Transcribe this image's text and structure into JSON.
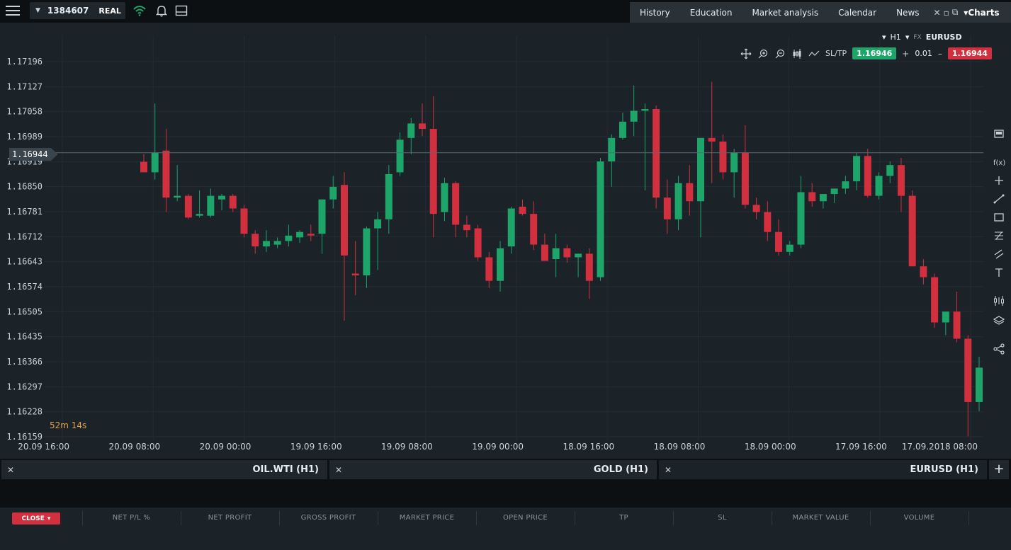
{
  "topbar": {
    "account_id": "1384607",
    "account_type": "REAL",
    "tabs": [
      "History",
      "Education",
      "Market analysis",
      "Calendar",
      "News"
    ],
    "charts_label": "Charts"
  },
  "chart": {
    "symbol": "EURUSD",
    "symbol_kind": "FX",
    "timeframe": "H1",
    "sell_price": "1.16944",
    "buy_price": "1.16946",
    "lot_size": "0.01",
    "lot_minus": "–",
    "lot_plus": "+",
    "sltp_label": "SL/TP",
    "countdown": "52m 14s",
    "current_price": "1.16944",
    "colors": {
      "up": "#1da56a",
      "down": "#d3303f",
      "background": "#1b2228"
    }
  },
  "chart_data": {
    "type": "candlestick",
    "y_ticks": [
      "1.17196",
      "1.17127",
      "1.17058",
      "1.16989",
      "1.16919",
      "1.16850",
      "1.16781",
      "1.16712",
      "1.16643",
      "1.16574",
      "1.16505",
      "1.16435",
      "1.16366",
      "1.16297",
      "1.16228",
      "1.16159"
    ],
    "x_ticks": [
      "17.09.2018 08:00",
      "17.09 16:00",
      "18.09 00:00",
      "18.09 08:00",
      "18.09 16:00",
      "19.09 00:00",
      "19.09 08:00",
      "19.09 16:00",
      "20.09 00:00",
      "20.09 08:00",
      "20.09 16:00"
    ],
    "ylim": [
      1.16159,
      1.17196
    ],
    "current_price": 1.16944,
    "candles": [
      {
        "o": 1.16919,
        "h": 1.1694,
        "l": 1.16895,
        "c": 1.1689
      },
      {
        "o": 1.1689,
        "h": 1.1708,
        "l": 1.1687,
        "c": 1.16945
      },
      {
        "o": 1.1695,
        "h": 1.1701,
        "l": 1.1678,
        "c": 1.1682
      },
      {
        "o": 1.1682,
        "h": 1.1691,
        "l": 1.1681,
        "c": 1.16825
      },
      {
        "o": 1.16825,
        "h": 1.1683,
        "l": 1.1676,
        "c": 1.16765
      },
      {
        "o": 1.1677,
        "h": 1.1684,
        "l": 1.16765,
        "c": 1.16775
      },
      {
        "o": 1.1677,
        "h": 1.16845,
        "l": 1.16765,
        "c": 1.16825
      },
      {
        "o": 1.16815,
        "h": 1.1683,
        "l": 1.16785,
        "c": 1.16825
      },
      {
        "o": 1.16825,
        "h": 1.1683,
        "l": 1.1678,
        "c": 1.1679
      },
      {
        "o": 1.1679,
        "h": 1.168,
        "l": 1.1671,
        "c": 1.1672
      },
      {
        "o": 1.1672,
        "h": 1.1673,
        "l": 1.16665,
        "c": 1.16685
      },
      {
        "o": 1.16685,
        "h": 1.1673,
        "l": 1.1667,
        "c": 1.167
      },
      {
        "o": 1.1669,
        "h": 1.1671,
        "l": 1.1668,
        "c": 1.167
      },
      {
        "o": 1.167,
        "h": 1.16745,
        "l": 1.16685,
        "c": 1.16715
      },
      {
        "o": 1.1671,
        "h": 1.1673,
        "l": 1.16695,
        "c": 1.16725
      },
      {
        "o": 1.1672,
        "h": 1.16745,
        "l": 1.167,
        "c": 1.16715
      },
      {
        "o": 1.1672,
        "h": 1.16815,
        "l": 1.16665,
        "c": 1.16815
      },
      {
        "o": 1.16815,
        "h": 1.1688,
        "l": 1.1679,
        "c": 1.1685
      },
      {
        "o": 1.16855,
        "h": 1.1689,
        "l": 1.1648,
        "c": 1.1666
      },
      {
        "o": 1.1661,
        "h": 1.167,
        "l": 1.1655,
        "c": 1.16605
      },
      {
        "o": 1.16605,
        "h": 1.1674,
        "l": 1.1657,
        "c": 1.16735
      },
      {
        "o": 1.16735,
        "h": 1.1678,
        "l": 1.1662,
        "c": 1.1676
      },
      {
        "o": 1.1676,
        "h": 1.1691,
        "l": 1.1672,
        "c": 1.16885
      },
      {
        "o": 1.1689,
        "h": 1.17,
        "l": 1.1688,
        "c": 1.1698
      },
      {
        "o": 1.16985,
        "h": 1.1704,
        "l": 1.1694,
        "c": 1.17025
      },
      {
        "o": 1.17025,
        "h": 1.1708,
        "l": 1.1699,
        "c": 1.1701
      },
      {
        "o": 1.1701,
        "h": 1.171,
        "l": 1.1671,
        "c": 1.16775
      },
      {
        "o": 1.1678,
        "h": 1.16875,
        "l": 1.16755,
        "c": 1.1686
      },
      {
        "o": 1.1686,
        "h": 1.16865,
        "l": 1.1671,
        "c": 1.16745
      },
      {
        "o": 1.16745,
        "h": 1.1677,
        "l": 1.1671,
        "c": 1.1673
      },
      {
        "o": 1.16735,
        "h": 1.16745,
        "l": 1.16645,
        "c": 1.16655
      },
      {
        "o": 1.16655,
        "h": 1.1667,
        "l": 1.1657,
        "c": 1.1659
      },
      {
        "o": 1.1659,
        "h": 1.167,
        "l": 1.1656,
        "c": 1.1668
      },
      {
        "o": 1.16685,
        "h": 1.16795,
        "l": 1.16665,
        "c": 1.1679
      },
      {
        "o": 1.16795,
        "h": 1.16815,
        "l": 1.1677,
        "c": 1.16775
      },
      {
        "o": 1.16775,
        "h": 1.1681,
        "l": 1.16675,
        "c": 1.1669
      },
      {
        "o": 1.1669,
        "h": 1.1672,
        "l": 1.16655,
        "c": 1.16645
      },
      {
        "o": 1.1665,
        "h": 1.1672,
        "l": 1.166,
        "c": 1.1668
      },
      {
        "o": 1.1668,
        "h": 1.1669,
        "l": 1.1664,
        "c": 1.16655
      },
      {
        "o": 1.16655,
        "h": 1.16665,
        "l": 1.166,
        "c": 1.16665
      },
      {
        "o": 1.16665,
        "h": 1.1668,
        "l": 1.1654,
        "c": 1.1659
      },
      {
        "o": 1.166,
        "h": 1.1693,
        "l": 1.1659,
        "c": 1.1692
      },
      {
        "o": 1.1692,
        "h": 1.16995,
        "l": 1.1685,
        "c": 1.16985
      },
      {
        "o": 1.16985,
        "h": 1.17055,
        "l": 1.1698,
        "c": 1.1703
      },
      {
        "o": 1.1703,
        "h": 1.1713,
        "l": 1.1699,
        "c": 1.1706
      },
      {
        "o": 1.1706,
        "h": 1.1708,
        "l": 1.1684,
        "c": 1.17065
      },
      {
        "o": 1.17065,
        "h": 1.17075,
        "l": 1.1679,
        "c": 1.1682
      },
      {
        "o": 1.1682,
        "h": 1.1687,
        "l": 1.1672,
        "c": 1.1676
      },
      {
        "o": 1.1676,
        "h": 1.1688,
        "l": 1.1673,
        "c": 1.1686
      },
      {
        "o": 1.1686,
        "h": 1.1691,
        "l": 1.1677,
        "c": 1.1681
      },
      {
        "o": 1.1681,
        "h": 1.16985,
        "l": 1.1671,
        "c": 1.16985
      },
      {
        "o": 1.16985,
        "h": 1.1714,
        "l": 1.1686,
        "c": 1.16975
      },
      {
        "o": 1.16975,
        "h": 1.16995,
        "l": 1.1687,
        "c": 1.1689
      },
      {
        "o": 1.1689,
        "h": 1.16955,
        "l": 1.1682,
        "c": 1.16945
      },
      {
        "o": 1.16945,
        "h": 1.1702,
        "l": 1.1679,
        "c": 1.168
      },
      {
        "o": 1.168,
        "h": 1.1682,
        "l": 1.1676,
        "c": 1.1678
      },
      {
        "o": 1.1678,
        "h": 1.1681,
        "l": 1.167,
        "c": 1.16725
      },
      {
        "o": 1.16725,
        "h": 1.1676,
        "l": 1.1666,
        "c": 1.1667
      },
      {
        "o": 1.1667,
        "h": 1.167,
        "l": 1.1666,
        "c": 1.1669
      },
      {
        "o": 1.1669,
        "h": 1.1688,
        "l": 1.1668,
        "c": 1.16835
      },
      {
        "o": 1.16835,
        "h": 1.1686,
        "l": 1.16795,
        "c": 1.1681
      },
      {
        "o": 1.1681,
        "h": 1.1683,
        "l": 1.1679,
        "c": 1.1683
      },
      {
        "o": 1.1683,
        "h": 1.1684,
        "l": 1.16805,
        "c": 1.16845
      },
      {
        "o": 1.16845,
        "h": 1.1688,
        "l": 1.1683,
        "c": 1.16865
      },
      {
        "o": 1.16865,
        "h": 1.16945,
        "l": 1.1684,
        "c": 1.16935
      },
      {
        "o": 1.16935,
        "h": 1.16955,
        "l": 1.1682,
        "c": 1.16825
      },
      {
        "o": 1.16825,
        "h": 1.1689,
        "l": 1.16815,
        "c": 1.1688
      },
      {
        "o": 1.1688,
        "h": 1.1692,
        "l": 1.1686,
        "c": 1.1691
      },
      {
        "o": 1.1691,
        "h": 1.1693,
        "l": 1.1678,
        "c": 1.16825
      },
      {
        "o": 1.16825,
        "h": 1.1684,
        "l": 1.1664,
        "c": 1.1663
      },
      {
        "o": 1.1663,
        "h": 1.1665,
        "l": 1.1658,
        "c": 1.166
      },
      {
        "o": 1.166,
        "h": 1.1661,
        "l": 1.1646,
        "c": 1.16475
      },
      {
        "o": 1.16475,
        "h": 1.165,
        "l": 1.1644,
        "c": 1.16505
      },
      {
        "o": 1.16505,
        "h": 1.1656,
        "l": 1.1642,
        "c": 1.1643
      },
      {
        "o": 1.1643,
        "h": 1.1644,
        "l": 1.1616,
        "c": 1.16255
      },
      {
        "o": 1.16255,
        "h": 1.1638,
        "l": 1.1623,
        "c": 1.1635
      }
    ]
  },
  "chart_tabs": [
    {
      "label": "EURUSD (H1)",
      "active": true
    },
    {
      "label": "GOLD (H1)",
      "active": false
    },
    {
      "label": "OIL.WTI (H1)",
      "active": false
    }
  ],
  "positions": {
    "close_label": "CLOSE",
    "columns": [
      "VOLUME",
      "MARKET VALUE",
      "SL",
      "TP",
      "OPEN PRICE",
      "MARKET PRICE",
      "GROSS PROFIT",
      "NET PROFIT",
      "NET P/L %"
    ]
  }
}
